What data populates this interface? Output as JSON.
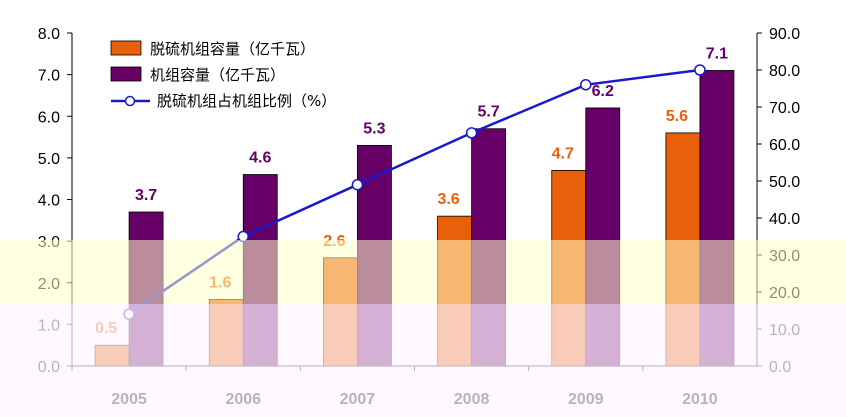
{
  "chart_data": {
    "type": "bar",
    "categories": [
      "2005",
      "2006",
      "2007",
      "2008",
      "2009",
      "2010"
    ],
    "series": [
      {
        "name": "脱硫机组容量（亿千瓦）",
        "kind": "bar",
        "axis": "left",
        "color": "#e8600a",
        "values": [
          0.5,
          1.6,
          2.6,
          3.6,
          4.7,
          5.6
        ]
      },
      {
        "name": "机组容量（亿千瓦）",
        "kind": "bar",
        "axis": "left",
        "color": "#660066",
        "values": [
          3.7,
          4.6,
          5.3,
          5.7,
          6.2,
          7.1
        ]
      },
      {
        "name": "脱硫机组占机组比例（%）",
        "kind": "line",
        "axis": "right",
        "color": "#1a1acc",
        "values": [
          14,
          35,
          49,
          63,
          76,
          80
        ]
      }
    ],
    "data_labels": {
      "bar0": [
        "0.5",
        "1.6",
        "2.6",
        "3.6",
        "4.7",
        "5.6"
      ],
      "bar1": [
        "3.7",
        "4.6",
        "5.3",
        "5.7",
        "6.2",
        "7.1"
      ]
    },
    "yleft": {
      "ylim": [
        0,
        8
      ],
      "ticks": [
        "0.0",
        "1.0",
        "2.0",
        "3.0",
        "4.0",
        "5.0",
        "6.0",
        "7.0",
        "8.0"
      ]
    },
    "yright": {
      "ylim": [
        0,
        90
      ],
      "ticks": [
        "0.0",
        "10.0",
        "20.0",
        "30.0",
        "40.0",
        "50.0",
        "60.0",
        "70.0",
        "80.0",
        "90.0"
      ]
    },
    "legend_position": "top-left",
    "grid": false,
    "title": "",
    "xlabel": "",
    "ylabel": ""
  }
}
